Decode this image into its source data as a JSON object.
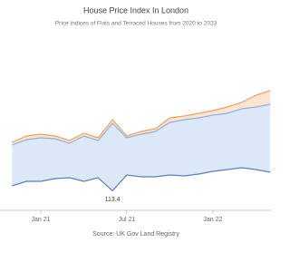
{
  "chart_data": {
    "type": "area",
    "title": "House Price Index In London",
    "subtitle": "Price Indices of Flats and Terraced Houses from 2020 to 2023",
    "source": "Source: UK Gov Land Registry",
    "categories": [
      null,
      null,
      "Jan 21",
      null,
      null,
      null,
      null,
      null,
      "Jul 21",
      null,
      null,
      null,
      null,
      null,
      "Jan 22",
      null,
      null,
      null,
      null
    ],
    "ylim": [
      108,
      156
    ],
    "series": [
      {
        "color": "#5b7fbf",
        "values": [
          114.75,
          116,
          116,
          116.75,
          117,
          116,
          117,
          113.4,
          117.75,
          117.25,
          117.25,
          117.75,
          117.5,
          118,
          118.75,
          119.25,
          119.75,
          119.25,
          118.5
        ],
        "value_labels": [
          null,
          null,
          null,
          null,
          null,
          null,
          null,
          "113.4",
          null,
          null,
          null,
          null,
          null,
          null,
          null,
          null,
          null,
          null,
          null
        ]
      },
      {
        "color": "#8fb0e0",
        "fill": "#dce8f8",
        "values": [
          126,
          127.5,
          128,
          127.75,
          126.5,
          128.5,
          127.25,
          132,
          128,
          129,
          129.75,
          132.25,
          133,
          133.5,
          134.25,
          134.75,
          136,
          136.5,
          137.25
        ]
      },
      {
        "color": "#f0a060",
        "fill": "#fce6d2",
        "values": [
          126.75,
          128.5,
          129,
          128.5,
          127.25,
          129.25,
          128,
          133,
          128.5,
          129.75,
          130.5,
          133.5,
          134,
          134.75,
          135.5,
          136.5,
          137.75,
          139.75,
          141
        ]
      }
    ]
  }
}
